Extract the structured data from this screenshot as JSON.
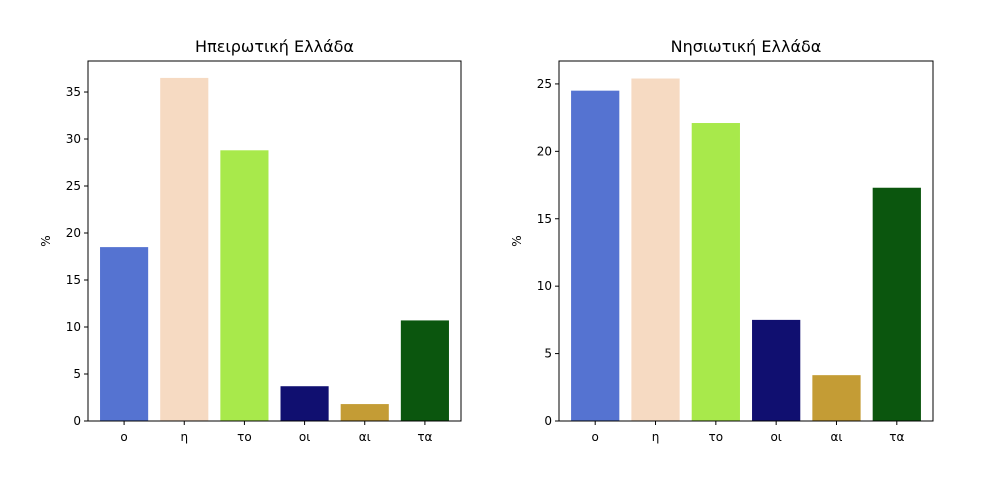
{
  "chart_data": [
    {
      "type": "bar",
      "title": "Ηπειρωτική Ελλάδα",
      "xlabel": "",
      "ylabel": "%",
      "categories": [
        "ο",
        "η",
        "το",
        "οι",
        "αι",
        "τα"
      ],
      "values": [
        18.5,
        36.5,
        28.8,
        3.7,
        1.8,
        10.7
      ],
      "colors": [
        "#5573d1",
        "#f6dac2",
        "#a8e94b",
        "#100f70",
        "#c49c35",
        "#0b560e"
      ],
      "ylim": [
        0,
        38.3
      ],
      "yticks": [
        0,
        5,
        10,
        15,
        20,
        25,
        30,
        35
      ],
      "grid": false
    },
    {
      "type": "bar",
      "title": "Νησιωτική Ελλάδα",
      "xlabel": "",
      "ylabel": "%",
      "categories": [
        "ο",
        "η",
        "το",
        "οι",
        "αι",
        "τα"
      ],
      "values": [
        24.5,
        25.4,
        22.1,
        7.5,
        3.4,
        17.3
      ],
      "colors": [
        "#5573d1",
        "#f6dac2",
        "#a8e94b",
        "#100f70",
        "#c49c35",
        "#0b560e"
      ],
      "ylim": [
        0,
        26.7
      ],
      "yticks": [
        0,
        5,
        10,
        15,
        20,
        25
      ],
      "grid": false
    }
  ]
}
